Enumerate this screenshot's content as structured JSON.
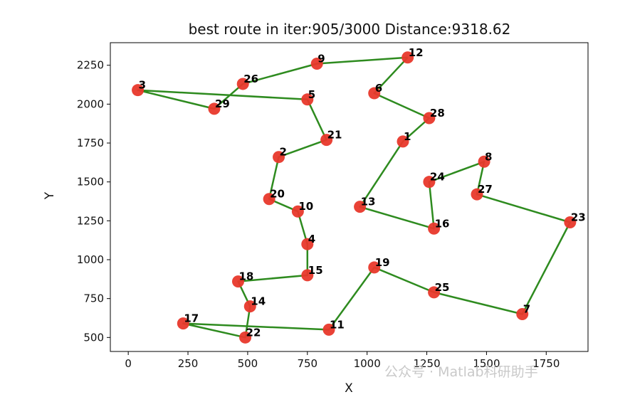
{
  "chart_data": {
    "type": "scatter",
    "title": "best route in iter:905/3000 Distance:9318.62",
    "xlabel": "X",
    "ylabel": "Y",
    "xlim": [
      -75,
      1925
    ],
    "ylim": [
      410,
      2395
    ],
    "xticks": [
      0,
      250,
      500,
      750,
      1000,
      1250,
      1500,
      1750
    ],
    "yticks": [
      500,
      750,
      1000,
      1250,
      1500,
      1750,
      2000,
      2250
    ],
    "point_color": "#e8382b",
    "route_color": "#2e8b1f",
    "points": [
      {
        "id": "1",
        "x": 1150,
        "y": 1760
      },
      {
        "id": "2",
        "x": 630,
        "y": 1660
      },
      {
        "id": "3",
        "x": 40,
        "y": 2090
      },
      {
        "id": "4",
        "x": 750,
        "y": 1100
      },
      {
        "id": "5",
        "x": 750,
        "y": 2030
      },
      {
        "id": "6",
        "x": 1030,
        "y": 2070
      },
      {
        "id": "7",
        "x": 1650,
        "y": 650
      },
      {
        "id": "8",
        "x": 1490,
        "y": 1630
      },
      {
        "id": "9",
        "x": 790,
        "y": 2260
      },
      {
        "id": "10",
        "x": 710,
        "y": 1310
      },
      {
        "id": "11",
        "x": 840,
        "y": 550
      },
      {
        "id": "12",
        "x": 1170,
        "y": 2300
      },
      {
        "id": "13",
        "x": 970,
        "y": 1340
      },
      {
        "id": "14",
        "x": 510,
        "y": 700
      },
      {
        "id": "15",
        "x": 750,
        "y": 900
      },
      {
        "id": "16",
        "x": 1280,
        "y": 1200
      },
      {
        "id": "17",
        "x": 230,
        "y": 590
      },
      {
        "id": "18",
        "x": 460,
        "y": 860
      },
      {
        "id": "19",
        "x": 1030,
        "y": 950
      },
      {
        "id": "20",
        "x": 590,
        "y": 1390
      },
      {
        "id": "21",
        "x": 830,
        "y": 1770
      },
      {
        "id": "22",
        "x": 490,
        "y": 500
      },
      {
        "id": "23",
        "x": 1850,
        "y": 1240
      },
      {
        "id": "24",
        "x": 1260,
        "y": 1500
      },
      {
        "id": "25",
        "x": 1280,
        "y": 790
      },
      {
        "id": "26",
        "x": 480,
        "y": 2130
      },
      {
        "id": "27",
        "x": 1460,
        "y": 1420
      },
      {
        "id": "28",
        "x": 1260,
        "y": 1910
      },
      {
        "id": "29",
        "x": 360,
        "y": 1970
      }
    ],
    "route": [
      "12",
      "9",
      "26",
      "29",
      "3",
      "5",
      "21",
      "2",
      "20",
      "10",
      "4",
      "15",
      "18",
      "14",
      "22",
      "17",
      "11",
      "19",
      "25",
      "7",
      "23",
      "27",
      "8",
      "24",
      "16",
      "13",
      "1",
      "28",
      "6",
      "12"
    ]
  },
  "watermark": "公众号 · Matlab科研助手"
}
